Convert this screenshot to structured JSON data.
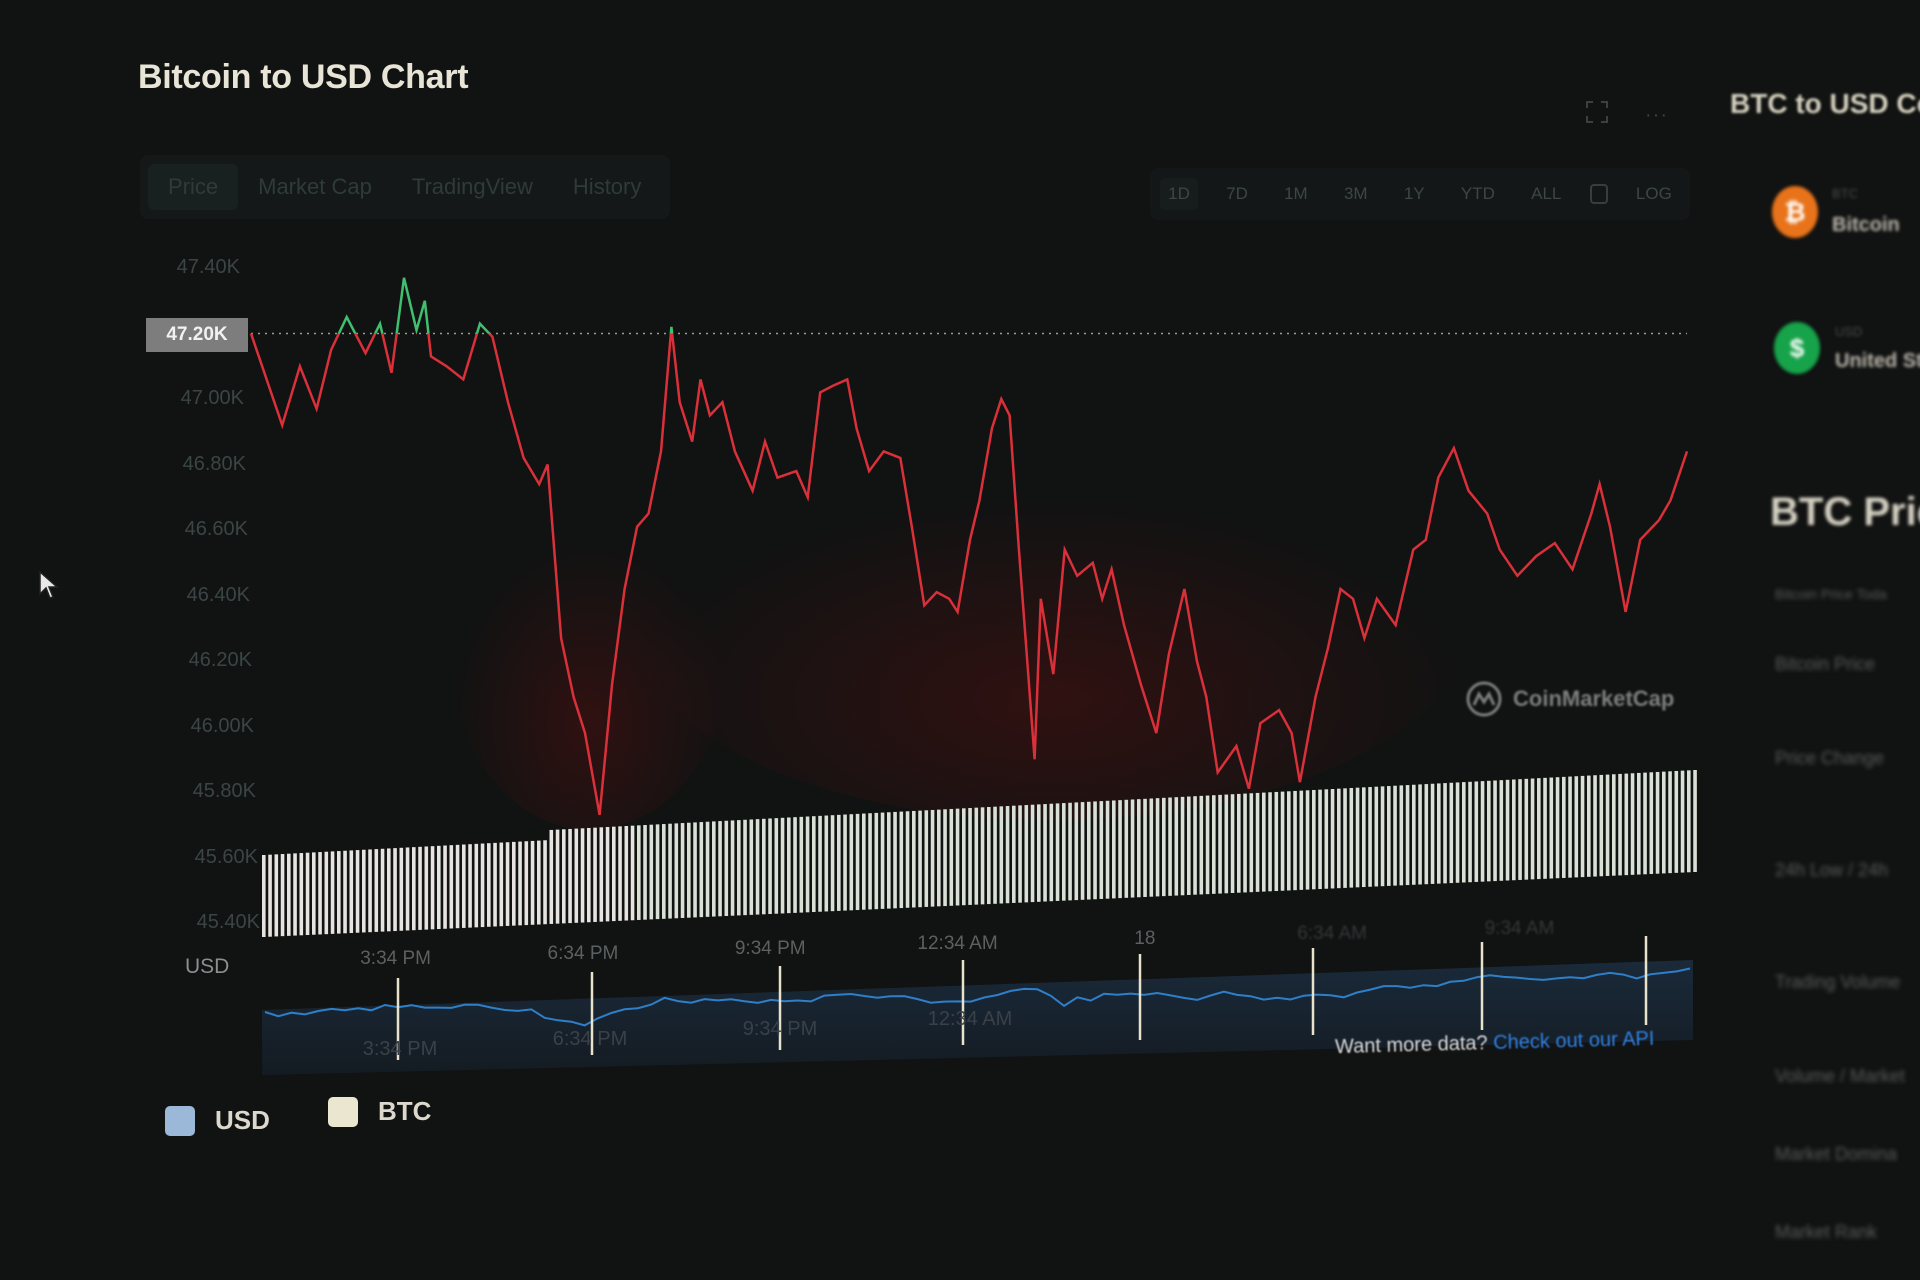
{
  "header": {
    "title": "Bitcoin to USD Chart",
    "fullscreen_icon": "fullscreen-icon",
    "more_icon": "more-horizontal-icon",
    "more_label": "···"
  },
  "tabs": [
    {
      "label": "Price",
      "active": true
    },
    {
      "label": "Market Cap"
    },
    {
      "label": "TradingView"
    },
    {
      "label": "History"
    }
  ],
  "ranges": [
    {
      "label": "1D",
      "active": true
    },
    {
      "label": "7D"
    },
    {
      "label": "1M"
    },
    {
      "label": "3M"
    },
    {
      "label": "1Y"
    },
    {
      "label": "YTD"
    },
    {
      "label": "ALL"
    },
    {
      "label": "",
      "icon": "calendar-icon"
    },
    {
      "label": "LOG"
    }
  ],
  "sidebar": {
    "converter_title": "BTC to USD Con",
    "coins": [
      {
        "symbol": "BTC",
        "name": "Bitcoin",
        "icon": "bitcoin-icon",
        "color": "#e8731a",
        "glyph": "₿"
      },
      {
        "symbol": "USD",
        "name": "United St",
        "icon": "dollar-icon",
        "color": "#16a34a",
        "glyph": "$"
      }
    ],
    "heading": "BTC Price",
    "stats": [
      "Bitcoin Price Toda",
      "Bitcoin Price",
      "Price Change",
      "24h Low / 24h",
      "Trading Volume",
      "Volume / Market",
      "Market Domina",
      "Market Rank"
    ]
  },
  "watermark": "CoinMarketCap",
  "footer": {
    "question": "Want more data?",
    "link": "Check out our API"
  },
  "legend": [
    {
      "label": "USD",
      "color": "#9bb8d8"
    },
    {
      "label": "BTC",
      "color": "#ebe6cf"
    }
  ],
  "colors": {
    "up": "#3fbf6f",
    "down": "#d9303a",
    "navigator": "#2f7fc8",
    "volume": "#d9e0d6"
  },
  "chart_data": {
    "type": "line",
    "ylabel": "USD",
    "ylim": [
      45400,
      47400
    ],
    "yticks": [
      "47.40K",
      "47.20K",
      "47.00K",
      "46.80K",
      "46.60K",
      "46.40K",
      "46.20K",
      "46.00K",
      "45.80K",
      "45.60K",
      "45.40K"
    ],
    "current_price_label": "47.20K",
    "reference_price": 47200,
    "grid": false,
    "xticks": [
      {
        "label": "3:34 PM",
        "time": "15:34"
      },
      {
        "label": "6:34 PM",
        "time": "18:34"
      },
      {
        "label": "9:34 PM",
        "time": "21:34"
      },
      {
        "label": "12:34 AM",
        "time": "00:34"
      },
      {
        "label": "18",
        "time": "03:34"
      },
      {
        "label": "6:34 AM",
        "time": "06:34"
      },
      {
        "label": "9:34 AM",
        "time": "09:34"
      }
    ],
    "navigator_labels": [
      "3:34 PM",
      "6:34 PM",
      "9:34 PM",
      "12:34 AM"
    ],
    "series": [
      {
        "points": [
          [
            "13:15",
            47200
          ],
          [
            "13:45",
            46920
          ],
          [
            "14:02",
            47100
          ],
          [
            "14:18",
            46970
          ],
          [
            "14:32",
            47150
          ],
          [
            "14:47",
            47250
          ],
          [
            "15:05",
            47140
          ],
          [
            "15:19",
            47230
          ],
          [
            "15:30",
            47080
          ],
          [
            "15:42",
            47370
          ],
          [
            "15:54",
            47210
          ],
          [
            "16:02",
            47300
          ],
          [
            "16:08",
            47130
          ],
          [
            "16:23",
            47100
          ],
          [
            "16:39",
            47060
          ],
          [
            "16:55",
            47230
          ],
          [
            "17:07",
            47190
          ],
          [
            "17:22",
            46990
          ],
          [
            "17:37",
            46820
          ],
          [
            "17:52",
            46740
          ],
          [
            "18:00",
            46800
          ],
          [
            "18:13",
            46270
          ],
          [
            "18:25",
            46090
          ],
          [
            "18:36",
            45980
          ],
          [
            "18:50",
            45730
          ],
          [
            "19:02",
            46130
          ],
          [
            "19:14",
            46420
          ],
          [
            "19:26",
            46610
          ],
          [
            "19:37",
            46650
          ],
          [
            "19:49",
            46840
          ],
          [
            "19:59",
            47220
          ],
          [
            "20:07",
            46990
          ],
          [
            "20:19",
            46870
          ],
          [
            "20:27",
            47060
          ],
          [
            "20:36",
            46950
          ],
          [
            "20:48",
            46990
          ],
          [
            "21:00",
            46840
          ],
          [
            "21:17",
            46720
          ],
          [
            "21:29",
            46870
          ],
          [
            "21:41",
            46760
          ],
          [
            "21:59",
            46780
          ],
          [
            "22:10",
            46700
          ],
          [
            "22:22",
            47020
          ],
          [
            "22:34",
            47040
          ],
          [
            "22:48",
            47060
          ],
          [
            "22:57",
            46910
          ],
          [
            "23:09",
            46780
          ],
          [
            "23:23",
            46840
          ],
          [
            "23:39",
            46820
          ],
          [
            "23:50",
            46610
          ],
          [
            "00:02",
            46370
          ],
          [
            "00:14",
            46410
          ],
          [
            "00:26",
            46390
          ],
          [
            "00:34",
            46350
          ],
          [
            "00:46",
            46570
          ],
          [
            "00:55",
            46690
          ],
          [
            "01:07",
            46910
          ],
          [
            "01:16",
            47000
          ],
          [
            "01:24",
            46950
          ],
          [
            "01:33",
            46540
          ],
          [
            "01:48",
            45900
          ],
          [
            "01:54",
            46390
          ],
          [
            "02:06",
            46160
          ],
          [
            "02:17",
            46540
          ],
          [
            "02:29",
            46460
          ],
          [
            "02:44",
            46500
          ],
          [
            "02:53",
            46390
          ],
          [
            "03:02",
            46480
          ],
          [
            "03:14",
            46310
          ],
          [
            "03:30",
            46130
          ],
          [
            "03:45",
            45980
          ],
          [
            "03:57",
            46220
          ],
          [
            "04:12",
            46420
          ],
          [
            "04:24",
            46200
          ],
          [
            "04:33",
            46090
          ],
          [
            "04:44",
            45860
          ],
          [
            "05:02",
            45940
          ],
          [
            "05:14",
            45810
          ],
          [
            "05:25",
            46010
          ],
          [
            "05:43",
            46050
          ],
          [
            "05:55",
            45980
          ],
          [
            "06:03",
            45830
          ],
          [
            "06:18",
            46090
          ],
          [
            "06:30",
            46240
          ],
          [
            "06:42",
            46420
          ],
          [
            "06:54",
            46390
          ],
          [
            "07:05",
            46270
          ],
          [
            "07:17",
            46390
          ],
          [
            "07:35",
            46310
          ],
          [
            "07:52",
            46540
          ],
          [
            "08:04",
            46570
          ],
          [
            "08:16",
            46760
          ],
          [
            "08:31",
            46850
          ],
          [
            "08:45",
            46720
          ],
          [
            "09:03",
            46650
          ],
          [
            "09:15",
            46540
          ],
          [
            "09:32",
            46460
          ],
          [
            "09:50",
            46520
          ],
          [
            "10:08",
            46560
          ],
          [
            "10:25",
            46480
          ],
          [
            "10:43",
            46650
          ],
          [
            "10:51",
            46740
          ],
          [
            "11:01",
            46610
          ],
          [
            "11:16",
            46350
          ],
          [
            "11:30",
            46570
          ],
          [
            "11:48",
            46630
          ],
          [
            "11:59",
            46690
          ],
          [
            "12:15",
            46840
          ]
        ]
      }
    ]
  }
}
